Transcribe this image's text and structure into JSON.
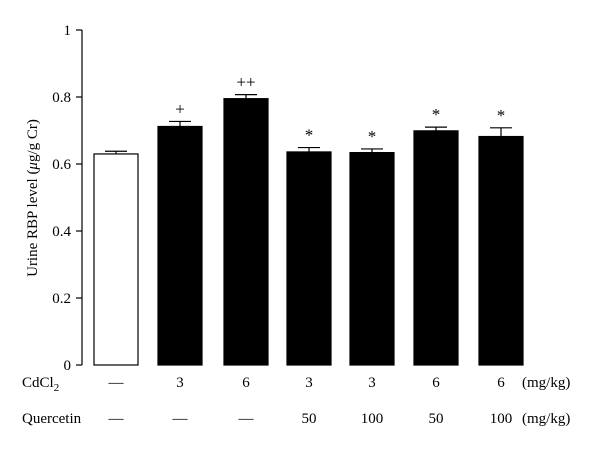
{
  "chart_data": {
    "type": "bar",
    "ylabel_main": "Urine RBP level (",
    "ylabel_mu": "μ",
    "ylabel_unit": "g/g Cr)",
    "ylim": [
      0,
      1
    ],
    "yticks": [
      "0",
      "0.2",
      "0.4",
      "0.6",
      "0.8",
      "1"
    ],
    "ytick_values": [
      0,
      0.2,
      0.4,
      0.6,
      0.8,
      1.0
    ],
    "values": [
      0.63,
      0.712,
      0.795,
      0.636,
      0.634,
      0.699,
      0.682
    ],
    "errors": [
      0.008,
      0.015,
      0.012,
      0.013,
      0.011,
      0.011,
      0.026
    ],
    "bar_fill": [
      "#ffffff",
      "#000000",
      "#000000",
      "#000000",
      "#000000",
      "#000000",
      "#000000"
    ],
    "annotations": [
      "",
      "+",
      "++",
      "*",
      "*",
      "*",
      "*"
    ],
    "rows": [
      {
        "label_main": "CdCl",
        "label_sub": "2",
        "values": [
          "—",
          "3",
          "6",
          "3",
          "3",
          "6",
          "6"
        ],
        "unit": "(mg/kg)"
      },
      {
        "label_main": "Quercetin",
        "label_sub": "",
        "values": [
          "—",
          "—",
          "—",
          "50",
          "100",
          "50",
          "100"
        ],
        "unit": "(mg/kg)"
      }
    ]
  }
}
